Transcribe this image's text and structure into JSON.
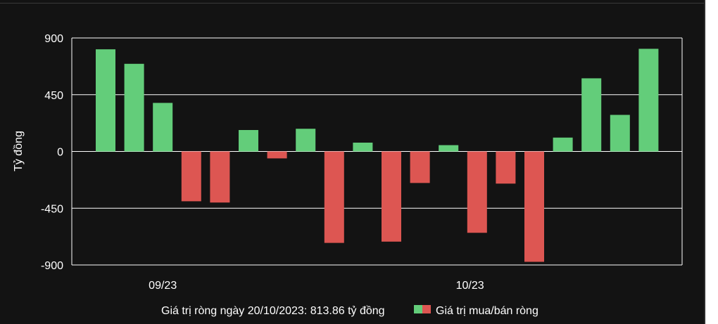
{
  "chart_data": {
    "type": "bar",
    "ylabel": "Tỷ đồng",
    "ylim": [
      -900,
      900
    ],
    "yticks": [
      900,
      450,
      0,
      -450,
      -900
    ],
    "ytick_labels": [
      "900",
      "450",
      "0",
      "-450",
      "-900"
    ],
    "xtick_labels": [
      {
        "label": "09/23",
        "index": 2
      },
      {
        "label": "10/23",
        "index": 12.75
      }
    ],
    "values": [
      810,
      695,
      385,
      -395,
      -405,
      170,
      -55,
      180,
      -725,
      70,
      -715,
      -250,
      50,
      -645,
      -255,
      -875,
      110,
      580,
      290,
      814
    ],
    "colors": {
      "positive": "#63cd7a",
      "negative": "#dd5652",
      "grid": "#ffffff",
      "background": "#131313"
    },
    "caption": "Giá trị ròng ngày 20/10/2023: 813.86 tỷ đồng",
    "legend": [
      {
        "label": "Giá trị mua/bán ròng",
        "color": "#63cd7a",
        "color2": "#dd5652"
      }
    ],
    "grid": true
  }
}
